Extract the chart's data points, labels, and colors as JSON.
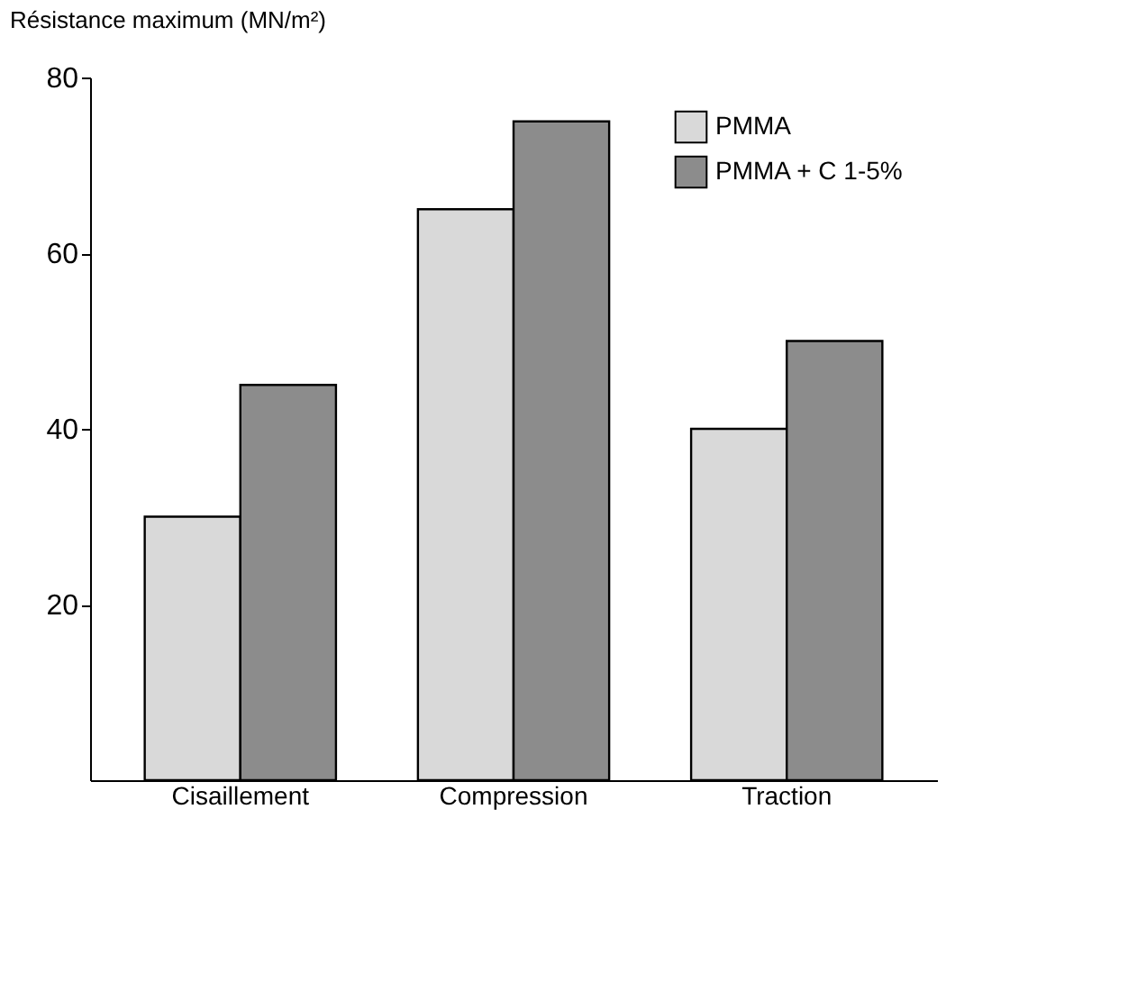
{
  "chart_data": {
    "type": "bar",
    "ylabel": "Résistance maximum (MN/m²)",
    "categories": [
      "Cisaillement",
      "Compression",
      "Traction"
    ],
    "series": [
      {
        "name": "PMMA",
        "color": "#d9d9d9",
        "values": [
          30,
          65,
          40
        ]
      },
      {
        "name": "PMMA + C 1-5%",
        "color": "#8c8c8c",
        "values": [
          45,
          75,
          50
        ]
      }
    ],
    "ylim": [
      0,
      80
    ],
    "yticks": [
      20,
      40,
      60,
      80
    ],
    "grid": false,
    "legend": "top right"
  }
}
